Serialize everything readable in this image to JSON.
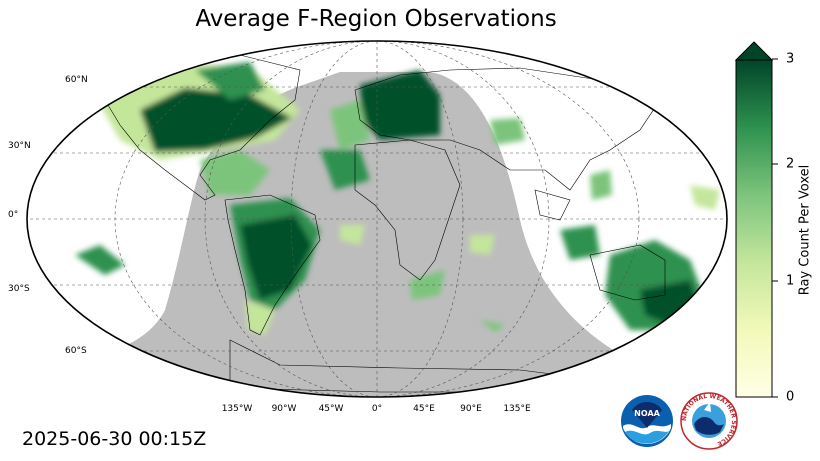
{
  "title": "Average F-Region Observations",
  "timestamp": "2025-06-30 00:15Z",
  "map": {
    "projection": "robinson",
    "night_shade_color": "#bdbdbd",
    "graticule_style": "dashed",
    "lat_labels": [
      "60°N",
      "30°N",
      "0°",
      "30°S",
      "60°S"
    ],
    "lon_labels": [
      "135°W",
      "90°W",
      "45°W",
      "0°",
      "45°E",
      "90°E",
      "135°E"
    ]
  },
  "colorbar": {
    "label": "Ray Count Per Voxel",
    "ticks": [
      "0",
      "1",
      "2",
      "3"
    ],
    "range": [
      0,
      3
    ],
    "extend": "max",
    "colormap": "greens",
    "color_low": "#ffffe5",
    "color_high": "#004529"
  },
  "logos": {
    "noaa": "NOAA",
    "nws": "NATIONAL WEATHER SERVICE"
  }
}
